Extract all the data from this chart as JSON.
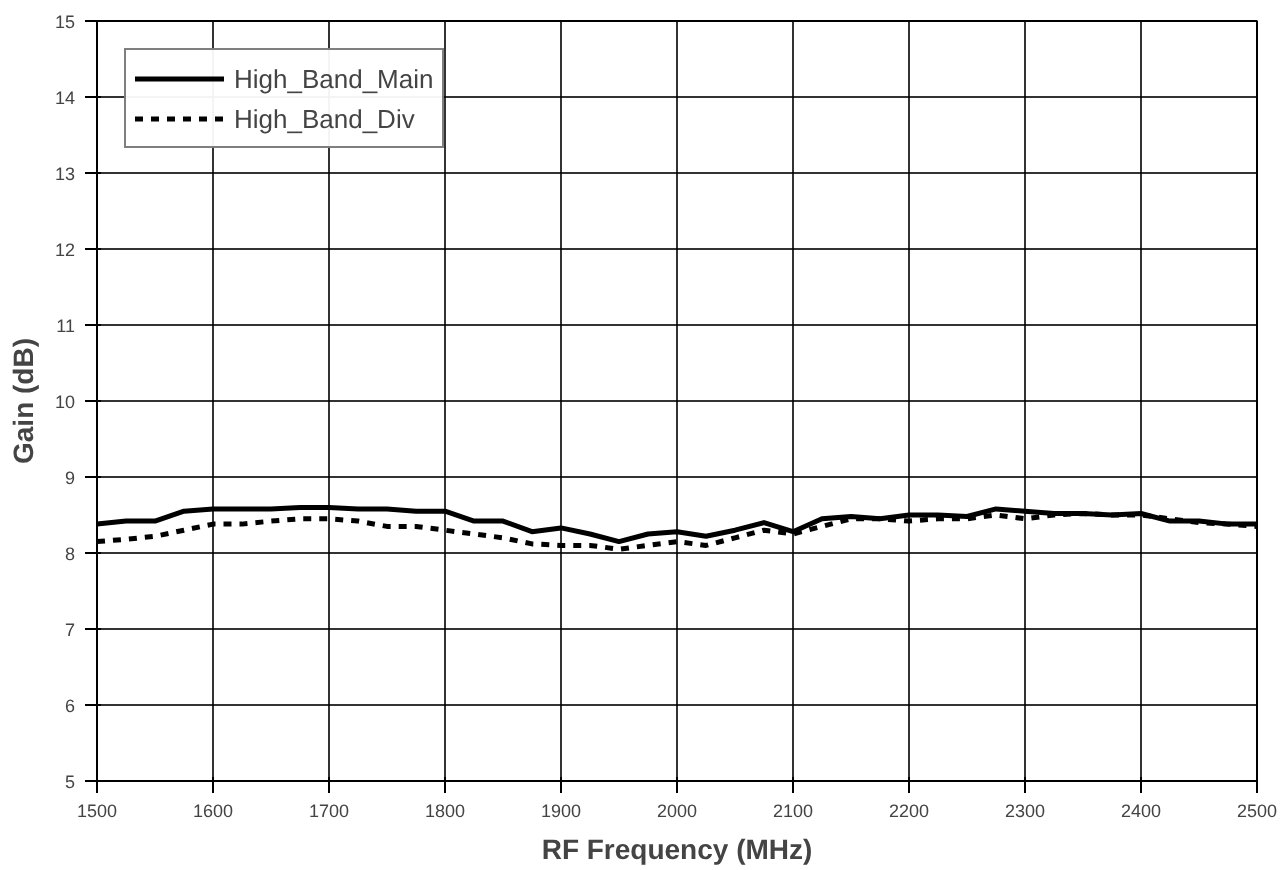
{
  "chart_data": {
    "type": "line",
    "xlabel": "RF Frequency (MHz)",
    "ylabel": "Gain (dB)",
    "x": [
      1500,
      1525,
      1550,
      1575,
      1600,
      1625,
      1650,
      1675,
      1700,
      1725,
      1750,
      1775,
      1800,
      1825,
      1850,
      1875,
      1900,
      1925,
      1950,
      1975,
      2000,
      2025,
      2050,
      2075,
      2100,
      2125,
      2150,
      2175,
      2200,
      2225,
      2250,
      2275,
      2300,
      2325,
      2350,
      2375,
      2400,
      2425,
      2450,
      2475,
      2500
    ],
    "series": [
      {
        "name": "High_Band_Main",
        "color": "#000000",
        "line_style": "solid",
        "values": [
          8.38,
          8.42,
          8.42,
          8.55,
          8.58,
          8.58,
          8.58,
          8.6,
          8.6,
          8.58,
          8.58,
          8.55,
          8.55,
          8.42,
          8.42,
          8.28,
          8.33,
          8.25,
          8.15,
          8.25,
          8.28,
          8.22,
          8.3,
          8.4,
          8.28,
          8.45,
          8.48,
          8.45,
          8.5,
          8.5,
          8.48,
          8.58,
          8.55,
          8.52,
          8.52,
          8.5,
          8.52,
          8.42,
          8.42,
          8.38,
          8.38
        ]
      },
      {
        "name": "High_Band_Div",
        "color": "#000000",
        "line_style": "dashed",
        "values": [
          8.15,
          8.18,
          8.22,
          8.3,
          8.38,
          8.38,
          8.42,
          8.45,
          8.45,
          8.42,
          8.35,
          8.35,
          8.3,
          8.25,
          8.2,
          8.12,
          8.1,
          8.1,
          8.05,
          8.1,
          8.15,
          8.1,
          8.2,
          8.3,
          8.25,
          8.35,
          8.45,
          8.45,
          8.42,
          8.45,
          8.45,
          8.5,
          8.45,
          8.5,
          8.52,
          8.5,
          8.5,
          8.45,
          8.4,
          8.38,
          8.35
        ]
      }
    ],
    "xlim": [
      1500,
      2500
    ],
    "xticks": [
      1500,
      1600,
      1700,
      1800,
      1900,
      2000,
      2100,
      2200,
      2300,
      2400,
      2500
    ],
    "ylim": [
      5,
      15
    ],
    "yticks": [
      5,
      6,
      7,
      8,
      9,
      10,
      11,
      12,
      13,
      14,
      15
    ],
    "grid": true,
    "legend": "top left",
    "marker": "none"
  }
}
